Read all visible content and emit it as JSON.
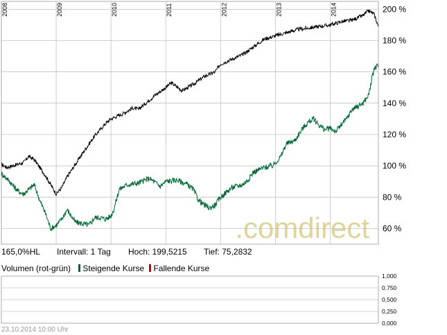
{
  "chart_data": [
    {
      "type": "line",
      "title": "",
      "x_ticks": [
        "2008",
        "2009",
        "2010",
        "2011",
        "2012",
        "2013",
        "2014"
      ],
      "y_ticks": [
        "60 %",
        "80 %",
        "100 %",
        "120 %",
        "140 %",
        "160 %",
        "180 %",
        "200 %"
      ],
      "ylim": [
        50,
        205
      ],
      "xlim": [
        2008.0,
        2014.88
      ],
      "grid": true,
      "series": [
        {
          "color": "#000000",
          "area_fill": "gradient #fff8e0 to #f8c828",
          "x": [
            2008.0,
            2008.1,
            2008.2,
            2008.3,
            2008.4,
            2008.5,
            2008.6,
            2008.7,
            2008.8,
            2008.9,
            2009.0,
            2009.1,
            2009.2,
            2009.35,
            2009.5,
            2009.7,
            2009.9,
            2010.0,
            2010.2,
            2010.4,
            2010.5,
            2010.6,
            2010.8,
            2011.0,
            2011.1,
            2011.3,
            2011.5,
            2011.7,
            2011.9,
            2012.0,
            2012.2,
            2012.4,
            2012.6,
            2012.8,
            2013.0,
            2013.2,
            2013.4,
            2013.6,
            2013.8,
            2014.0,
            2014.2,
            2014.4,
            2014.6,
            2014.7,
            2014.8,
            2014.88
          ],
          "values": [
            101,
            99,
            100,
            101,
            102,
            106,
            104,
            99,
            94,
            88,
            82,
            86,
            93,
            101,
            109,
            119,
            127,
            130,
            133,
            137,
            136,
            139,
            145,
            150,
            153,
            148,
            152,
            157,
            160,
            165,
            168,
            171,
            176,
            181,
            183,
            185,
            187,
            188,
            189,
            190,
            192,
            193,
            196,
            199,
            197,
            189
          ]
        },
        {
          "color": "#006633",
          "x": [
            2008.0,
            2008.1,
            2008.2,
            2008.3,
            2008.4,
            2008.5,
            2008.6,
            2008.7,
            2008.8,
            2008.9,
            2009.0,
            2009.1,
            2009.2,
            2009.35,
            2009.5,
            2009.6,
            2009.7,
            2009.8,
            2009.9,
            2010.0,
            2010.05,
            2010.15,
            2010.3,
            2010.5,
            2010.7,
            2010.9,
            2011.0,
            2011.2,
            2011.4,
            2011.5,
            2011.6,
            2011.7,
            2011.8,
            2011.9,
            2012.0,
            2012.2,
            2012.4,
            2012.5,
            2012.6,
            2012.8,
            2012.95,
            2013.1,
            2013.2,
            2013.35,
            2013.5,
            2013.6,
            2013.7,
            2013.8,
            2013.9,
            2014.0,
            2014.1,
            2014.2,
            2014.3,
            2014.4,
            2014.5,
            2014.6,
            2014.7,
            2014.8,
            2014.88
          ],
          "values": [
            95,
            92,
            88,
            84,
            82,
            85,
            88,
            78,
            70,
            60,
            62,
            66,
            72,
            64,
            63,
            62,
            67,
            67,
            66,
            68,
            72,
            85,
            88,
            89,
            92,
            87,
            90,
            91,
            88,
            85,
            78,
            75,
            73,
            75,
            80,
            86,
            88,
            91,
            96,
            99,
            100,
            106,
            114,
            116,
            124,
            128,
            130,
            126,
            123,
            124,
            122,
            126,
            130,
            136,
            138,
            140,
            145,
            162,
            164
          ]
        }
      ]
    },
    {
      "type": "bar",
      "y_ticks": [
        "1,000",
        "0,750",
        "0,500",
        "0,250",
        "0,000"
      ],
      "ylim": [
        0,
        1
      ]
    }
  ],
  "info": {
    "value": "165,0%HL",
    "interval": "Intervall: 1 Tag",
    "high": "Hoch: 199,5215",
    "low": "Tief: 75,2832"
  },
  "volume_legend": {
    "label": "Volumen (rot-grün)",
    "rising": "Steigende Kurse",
    "falling": "Fallende Kurse",
    "rising_color": "#006633",
    "falling_color": "#cc0000"
  },
  "watermark": ".comdirect",
  "timestamp": "23.10.2014 10:00 Uhr"
}
